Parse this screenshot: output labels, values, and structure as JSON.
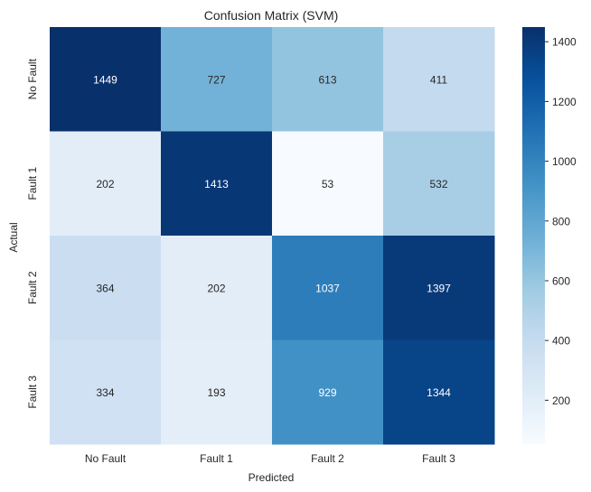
{
  "chart_data": {
    "type": "heatmap",
    "title": "Confusion Matrix (SVM)",
    "xlabel": "Predicted",
    "ylabel": "Actual",
    "x_categories": [
      "No Fault",
      "Fault 1",
      "Fault 2",
      "Fault 3"
    ],
    "y_categories": [
      "No Fault",
      "Fault 1",
      "Fault 2",
      "Fault 3"
    ],
    "values": [
      [
        1449,
        727,
        613,
        411
      ],
      [
        202,
        1413,
        53,
        532
      ],
      [
        364,
        202,
        1037,
        1397
      ],
      [
        334,
        193,
        929,
        1344
      ]
    ],
    "colorscale": "Blues",
    "colorbar": {
      "min": 53,
      "max": 1449,
      "ticks": [
        200,
        400,
        600,
        800,
        1000,
        1200,
        1400
      ]
    }
  }
}
